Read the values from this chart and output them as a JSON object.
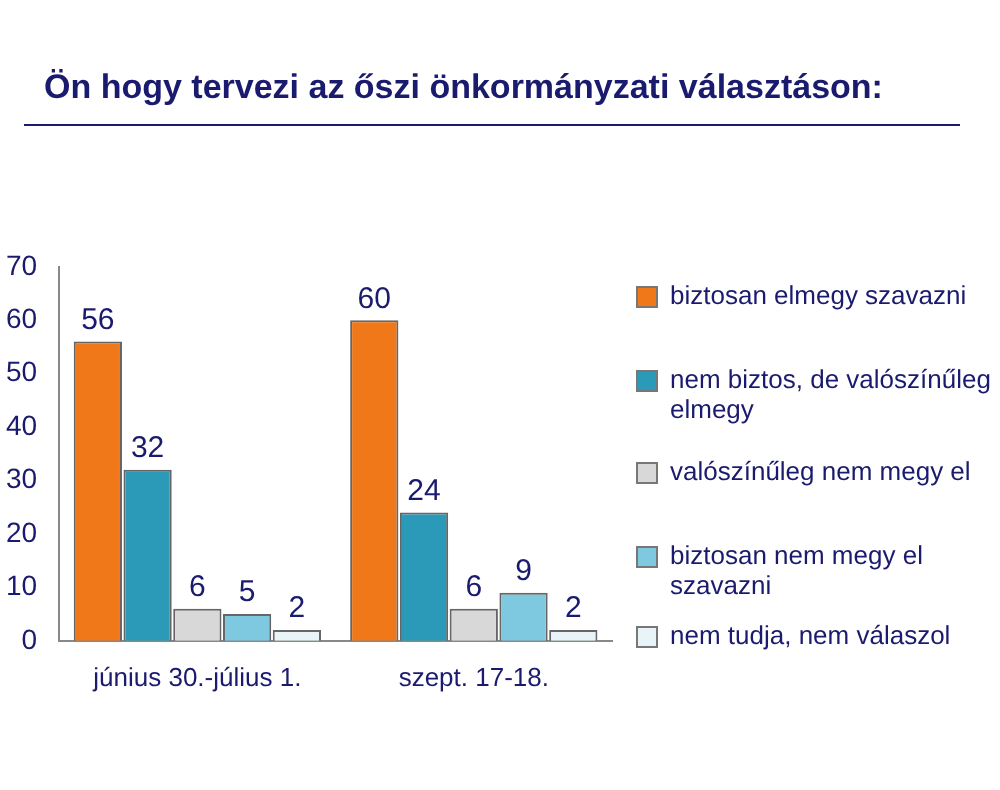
{
  "chart_data": {
    "type": "bar",
    "title": "Ön hogy tervezi az őszi önkormányzati választáson:",
    "categories": [
      "június 30.-július 1.",
      "szept. 17-18."
    ],
    "series": [
      {
        "name": "biztosan elmegy szavazni",
        "color": "#f07818",
        "values": [
          56,
          60
        ]
      },
      {
        "name": "nem biztos, de valószínűleg elmegy",
        "color": "#2a9ab8",
        "values": [
          32,
          24
        ]
      },
      {
        "name": "valószínűleg nem megy el",
        "color": "#d8d8d8",
        "values": [
          6,
          6
        ]
      },
      {
        "name": "biztosan nem megy el szavazni",
        "color": "#7ec8e0",
        "values": [
          5,
          9
        ]
      },
      {
        "name": "nem tudja, nem válaszol",
        "color": "#e8f4f8",
        "values": [
          2,
          2
        ]
      }
    ],
    "ylim": [
      0,
      70
    ],
    "yticks": [
      0,
      10,
      20,
      30,
      40,
      50,
      60,
      70
    ],
    "grid": false,
    "legend": "right",
    "data_labels": true
  }
}
